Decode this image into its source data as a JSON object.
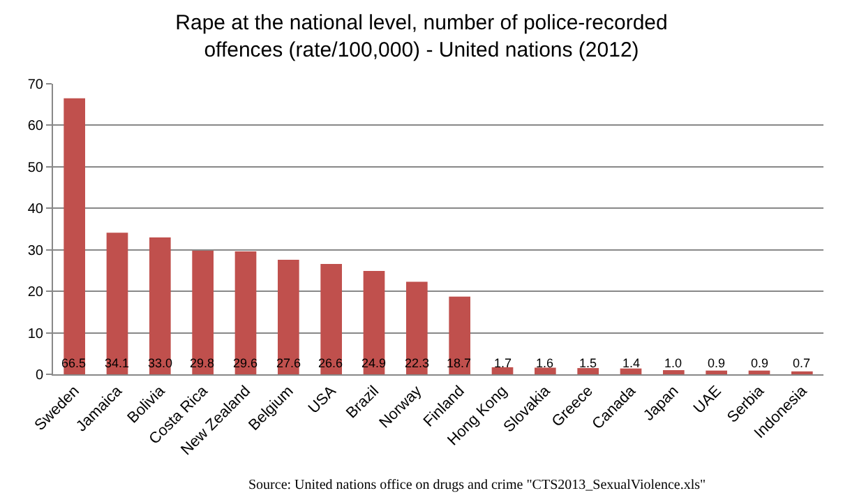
{
  "chart_data": {
    "type": "bar",
    "title": "Rape at the national level, number of police-recorded\noffences (rate/100,000) - United nations (2012)",
    "categories": [
      "Sweden",
      "Jamaica",
      "Bolivia",
      "Costa Rica",
      "New Zealand",
      "Belgium",
      "USA",
      "Brazil",
      "Norway",
      "Finland",
      "Hong Kong",
      "Slovakia",
      "Greece",
      "Canada",
      "Japan",
      "UAE",
      "Serbia",
      "Indonesia"
    ],
    "values": [
      66.5,
      34.1,
      33.0,
      29.8,
      29.6,
      27.6,
      26.6,
      24.9,
      22.3,
      18.7,
      1.7,
      1.6,
      1.5,
      1.4,
      1.0,
      0.9,
      0.9,
      0.7
    ],
    "value_labels": [
      "66.5",
      "34.1",
      "33.0",
      "29.8",
      "29.6",
      "27.6",
      "26.6",
      "24.9",
      "22.3",
      "18.7",
      "1.7",
      "1.6",
      "1.5",
      "1.4",
      "1.0",
      "0.9",
      "0.9",
      "0.7"
    ],
    "color": "#c0504d",
    "ylim": [
      0,
      70
    ],
    "yticks": [
      0,
      10,
      20,
      30,
      40,
      50,
      60,
      70
    ],
    "grid": "y",
    "annotations": [
      "Source: United nations office on drugs and crime \"CTS2013_SexualViolence.xls\""
    ]
  }
}
